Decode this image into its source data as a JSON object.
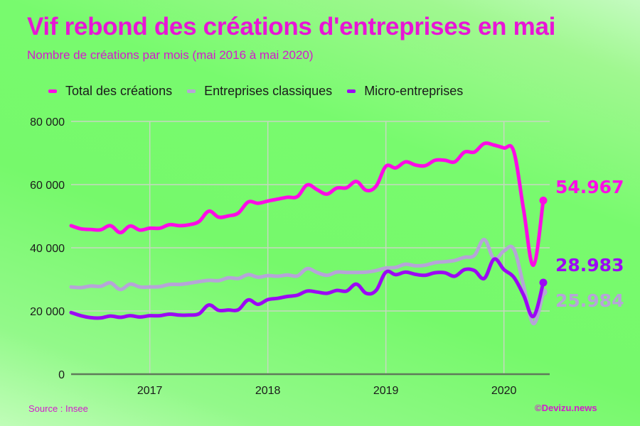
{
  "title": "Vif rebond des créations d'entreprises en mai",
  "subtitle": "Nombre de créations par mois (mai 2016 à mai 2020)",
  "source": "Source : Insee",
  "credit": "©Devizu.news",
  "colors": {
    "total": "#fc0be6",
    "classiques": "#b6a4d8",
    "micro": "#9c08f4",
    "grid": "#c6d8c0",
    "axis": "#5f7a5a"
  },
  "chart_data": {
    "type": "line",
    "title": "Vif rebond des créations d'entreprises en mai",
    "subtitle": "Nombre de créations par mois (mai 2016 à mai 2020)",
    "xlabel": "",
    "ylabel": "",
    "ylim": [
      0,
      80000
    ],
    "yticks": [
      0,
      20000,
      40000,
      60000,
      80000
    ],
    "ytick_labels": [
      "0",
      "20 000",
      "40 000",
      "60 000",
      "80 000"
    ],
    "xtick_labels": [
      "2017",
      "2018",
      "2019",
      "2020"
    ],
    "grid": true,
    "legend_position": "top",
    "x": [
      "2016-05",
      "2016-06",
      "2016-07",
      "2016-08",
      "2016-09",
      "2016-10",
      "2016-11",
      "2016-12",
      "2017-01",
      "2017-02",
      "2017-03",
      "2017-04",
      "2017-05",
      "2017-06",
      "2017-07",
      "2017-08",
      "2017-09",
      "2017-10",
      "2017-11",
      "2017-12",
      "2018-01",
      "2018-02",
      "2018-03",
      "2018-04",
      "2018-05",
      "2018-06",
      "2018-07",
      "2018-08",
      "2018-09",
      "2018-10",
      "2018-11",
      "2018-12",
      "2019-01",
      "2019-02",
      "2019-03",
      "2019-04",
      "2019-05",
      "2019-06",
      "2019-07",
      "2019-08",
      "2019-09",
      "2019-10",
      "2019-11",
      "2019-12",
      "2020-01",
      "2020-02",
      "2020-03",
      "2020-04",
      "2020-05"
    ],
    "series": [
      {
        "name": "Total des créations",
        "color": "#fc0be6",
        "values": [
          47000,
          46000,
          45800,
          45700,
          47000,
          44800,
          46900,
          45600,
          46200,
          46200,
          47300,
          47000,
          47300,
          48300,
          51600,
          49700,
          50100,
          51000,
          54500,
          54100,
          54800,
          55400,
          56000,
          56200,
          59900,
          58400,
          57000,
          58900,
          59000,
          61000,
          58200,
          59500,
          65800,
          65300,
          67200,
          66200,
          66000,
          67700,
          67700,
          67200,
          70300,
          70300,
          73000,
          72500,
          71600,
          70500,
          52000,
          34500,
          54967
        ]
      },
      {
        "name": "Entreprises classiques",
        "color": "#b6a4d8",
        "values": [
          27600,
          27400,
          27900,
          27800,
          28900,
          26800,
          28500,
          27600,
          27600,
          27700,
          28400,
          28400,
          28800,
          29300,
          29700,
          29600,
          30500,
          30300,
          31500,
          30700,
          31200,
          31000,
          31400,
          31100,
          33400,
          32200,
          31300,
          32300,
          32200,
          32200,
          32300,
          32800,
          33600,
          33800,
          34800,
          34300,
          34500,
          35300,
          35600,
          36000,
          37000,
          37600,
          42600,
          36500,
          39000,
          39600,
          28000,
          16000,
          25984
        ]
      },
      {
        "name": "Micro-entreprises",
        "color": "#9c08f4",
        "values": [
          19500,
          18500,
          17900,
          17800,
          18400,
          18000,
          18500,
          18100,
          18500,
          18500,
          19000,
          18700,
          18700,
          19100,
          21900,
          20200,
          20300,
          20400,
          23500,
          22100,
          23600,
          24000,
          24600,
          25000,
          26300,
          26000,
          25600,
          26500,
          26300,
          28500,
          25600,
          26500,
          32300,
          31500,
          32300,
          31600,
          31300,
          32100,
          32100,
          31000,
          33100,
          32800,
          30300,
          36400,
          33100,
          30700,
          25000,
          18300,
          28983
        ]
      }
    ],
    "end_labels": [
      "54.967",
      "28.983",
      "25.984"
    ]
  },
  "legend": [
    {
      "label": "Total des créations",
      "color": "#fc0be6"
    },
    {
      "label": "Entreprises classiques",
      "color": "#b6a4d8"
    },
    {
      "label": "Micro-entreprises",
      "color": "#9c08f4"
    }
  ]
}
